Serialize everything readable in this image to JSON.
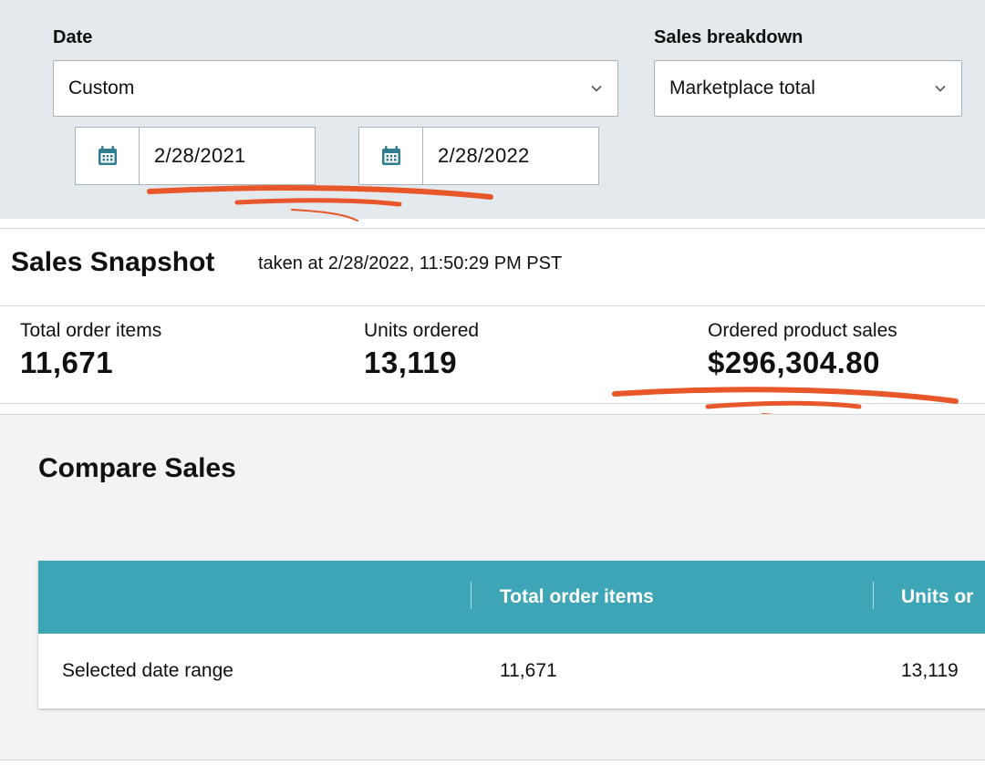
{
  "filters": {
    "date": {
      "label": "Date",
      "selected": "Custom",
      "start_date": "2/28/2021",
      "end_date": "2/28/2022"
    },
    "sales_breakdown": {
      "label": "Sales breakdown",
      "selected": "Marketplace total"
    }
  },
  "snapshot": {
    "title": "Sales Snapshot",
    "taken_at": "taken at 2/28/2022, 11:50:29 PM PST",
    "metrics": [
      {
        "label": "Total order items",
        "value": "11,671"
      },
      {
        "label": "Units ordered",
        "value": "13,119"
      },
      {
        "label": "Ordered product sales",
        "value": "$296,304.80"
      }
    ]
  },
  "compare": {
    "title": "Compare Sales",
    "columns": [
      "",
      "Total order items",
      "Units or"
    ],
    "rows": [
      {
        "label": "Selected date range",
        "cells": [
          "11,671",
          "13,119"
        ]
      }
    ]
  },
  "colors": {
    "panel_bg": "#e3e9ec",
    "table_header": "#3ea5b6",
    "annotation": "#e8572a",
    "calendar_icon": "#2e7e8f"
  },
  "icons": {
    "date_dropdown": "chevron-down-icon",
    "breakdown_dropdown": "chevron-down-icon",
    "start_calendar": "calendar-icon",
    "end_calendar": "calendar-icon"
  }
}
